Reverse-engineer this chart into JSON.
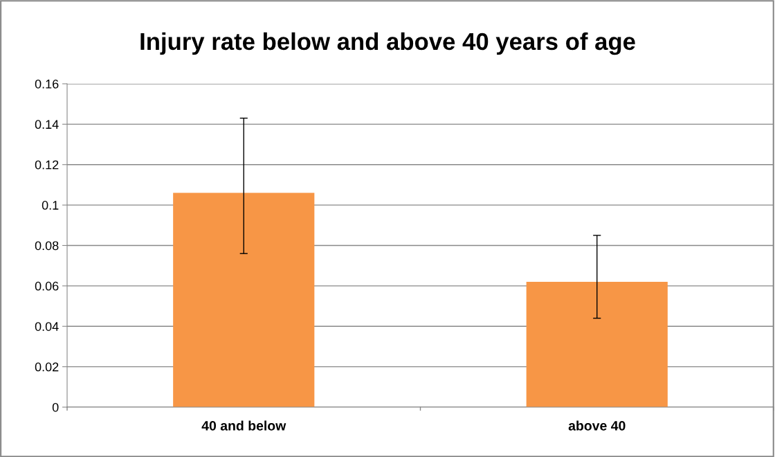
{
  "chart_data": {
    "type": "bar",
    "title": "Injury rate below and above 40 years of age",
    "categories": [
      "40 and below",
      "above 40"
    ],
    "values": [
      0.106,
      0.062
    ],
    "errors": [
      [
        0.076,
        0.143
      ],
      [
        0.044,
        0.085
      ]
    ],
    "color": "#f79646",
    "ylim": [
      0,
      0.16
    ],
    "yticks": [
      {
        "value": 0,
        "label": "0"
      },
      0.02,
      0.04,
      0.06,
      0.08,
      {
        "value": 0.1,
        "label": "0.1"
      },
      0.12,
      0.14,
      0.16
    ],
    "grid": "y"
  }
}
